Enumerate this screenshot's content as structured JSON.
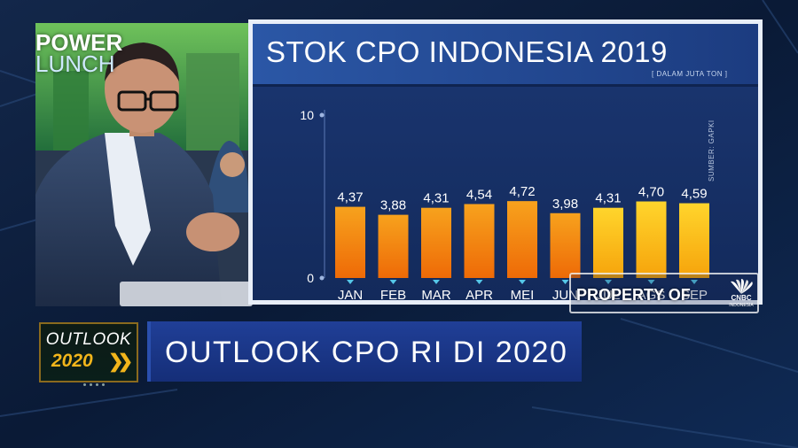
{
  "show": {
    "logo_line1": "POWER",
    "logo_line2": "LUNCH"
  },
  "lower_third": {
    "badge_line1": "OUTLOOK",
    "badge_line2": "2020",
    "headline": "OUTLOOK CPO RI DI 2020"
  },
  "watermark": {
    "text": "PROPERTY OF",
    "brand": "CNBC",
    "brand_sub": "INDONESIA"
  },
  "chart_data": {
    "type": "bar",
    "title": "STOK CPO INDONESIA 2019",
    "subtitle": "[ DALAM JUTA TON ]",
    "source": "SUMBER: GAPKI",
    "categories": [
      "JAN",
      "FEB",
      "MAR",
      "APR",
      "MEI",
      "JUN",
      "JUL",
      "AGS",
      "SEP"
    ],
    "values": [
      4.37,
      3.88,
      4.31,
      4.54,
      4.72,
      3.98,
      4.31,
      4.7,
      4.59
    ],
    "value_labels": [
      "4,37",
      "3,88",
      "4,31",
      "4,54",
      "4,72",
      "3,98",
      "4,31",
      "4,70",
      "4,59"
    ],
    "y_ticks": [
      "0",
      "10"
    ],
    "ylim": [
      0,
      10
    ],
    "grid": false,
    "colors": {
      "bar_top_early": "#f7a21d",
      "bar_bottom_early": "#ee6a07",
      "bar_top_late": "#ffd52c",
      "bar_bottom_late": "#f6a30b",
      "panel": "#183063",
      "title_bar": "#23478f"
    }
  }
}
